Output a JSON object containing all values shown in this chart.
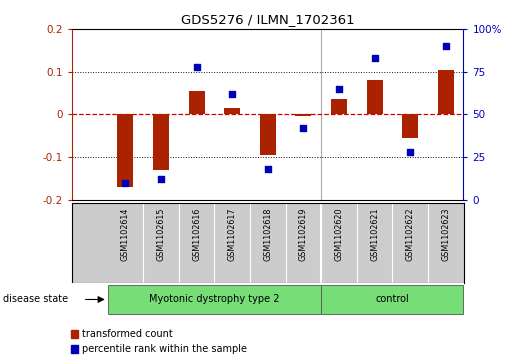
{
  "title": "GDS5276 / ILMN_1702361",
  "samples": [
    "GSM1102614",
    "GSM1102615",
    "GSM1102616",
    "GSM1102617",
    "GSM1102618",
    "GSM1102619",
    "GSM1102620",
    "GSM1102621",
    "GSM1102622",
    "GSM1102623"
  ],
  "transformed_count": [
    -0.17,
    -0.13,
    0.055,
    0.015,
    -0.095,
    -0.005,
    0.035,
    0.08,
    -0.055,
    0.105
  ],
  "percentile_rank": [
    10,
    12,
    78,
    62,
    18,
    42,
    65,
    83,
    28,
    90
  ],
  "disease_groups": [
    {
      "label": "Myotonic dystrophy type 2",
      "start": 0,
      "end": 6,
      "color": "#77DD77"
    },
    {
      "label": "control",
      "start": 6,
      "end": 10,
      "color": "#77DD77"
    }
  ],
  "ylim_left": [
    -0.2,
    0.2
  ],
  "ylim_right": [
    0,
    100
  ],
  "yticks_left": [
    -0.2,
    -0.1,
    0.0,
    0.1,
    0.2
  ],
  "yticks_right": [
    0,
    25,
    50,
    75,
    100
  ],
  "yticklabels_left": [
    "-0.2",
    "-0.1",
    "0",
    "0.1",
    "0.2"
  ],
  "yticklabels_right": [
    "0",
    "25",
    "50",
    "75",
    "100%"
  ],
  "bar_color": "#AA2200",
  "scatter_color": "#0000BB",
  "zero_line_color": "#CC0000",
  "dotted_line_color": "#111111",
  "bg_color": "#FFFFFF",
  "sample_label_bg": "#CCCCCC",
  "label_transformed": "transformed count",
  "label_percentile": "percentile rank within the sample",
  "disease_state_label": "disease state",
  "n_myotonic": 6,
  "n_control": 4
}
